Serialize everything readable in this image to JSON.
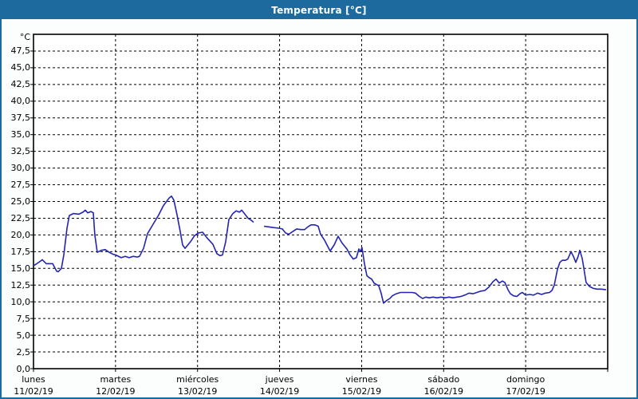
{
  "window": {
    "title": "Temperatura [°C]"
  },
  "colors": {
    "titlebar_bg": "#1d6b9e",
    "titlebar_text": "#ffffff",
    "window_border": "#1d6b9e",
    "canvas_bg": "#fcfefd",
    "plot_bg": "#ffffff",
    "plot_border": "#000000",
    "gridline": "#000000",
    "line_color": "#2323b4",
    "label_color": "#000000"
  },
  "y_axis": {
    "unit": "°C",
    "tick_labels": [
      "47,5",
      "45,0",
      "42,5",
      "40,0",
      "37,5",
      "35,0",
      "32,5",
      "30,0",
      "27,5",
      "25,0",
      "22,5",
      "20,0",
      "17,5",
      "15,0",
      "12,5",
      "10,0",
      "7,5",
      "5,0",
      "2,5",
      "0,0"
    ],
    "tick_values": [
      47.5,
      45.0,
      42.5,
      40.0,
      37.5,
      35.0,
      32.5,
      30.0,
      27.5,
      25.0,
      22.5,
      20.0,
      17.5,
      15.0,
      12.5,
      10.0,
      7.5,
      5.0,
      2.5,
      0.0
    ]
  },
  "x_axis": {
    "days": [
      {
        "name": "lunes",
        "date": "11/02/19"
      },
      {
        "name": "martes",
        "date": "12/02/19"
      },
      {
        "name": "miércoles",
        "date": "13/02/19"
      },
      {
        "name": "jueves",
        "date": "14/02/19"
      },
      {
        "name": "viernes",
        "date": "15/02/19"
      },
      {
        "name": "sábado",
        "date": "16/02/19"
      },
      {
        "name": "domingo",
        "date": "17/02/19"
      }
    ]
  },
  "chart_data": {
    "type": "line",
    "title": "Temperatura [°C]",
    "xlabel": "",
    "ylabel": "°C",
    "ylim": [
      0,
      50
    ],
    "y_step": 2.5,
    "x_range_days": 7,
    "x_start": "lunes 11/02/19 00:00",
    "x_end": "domingo 17/02/19 24:00",
    "grid": "dashed",
    "legend": "none",
    "series": [
      {
        "name": "Temperatura",
        "color": "#2323b4",
        "x_unit": "days since 11/02/19 00:00",
        "segments": [
          [
            [
              0.0,
              15.4
            ],
            [
              0.04,
              15.7
            ],
            [
              0.087,
              16.1
            ],
            [
              0.107,
              16.3
            ],
            [
              0.156,
              15.7
            ],
            [
              0.233,
              15.7
            ],
            [
              0.282,
              14.6
            ],
            [
              0.301,
              14.5
            ],
            [
              0.34,
              15.0
            ],
            [
              0.369,
              17.0
            ],
            [
              0.408,
              21.0
            ],
            [
              0.437,
              22.9
            ],
            [
              0.486,
              23.2
            ],
            [
              0.554,
              23.1
            ],
            [
              0.603,
              23.4
            ],
            [
              0.632,
              23.7
            ],
            [
              0.661,
              23.3
            ],
            [
              0.7,
              23.5
            ],
            [
              0.729,
              23.3
            ],
            [
              0.748,
              20.0
            ],
            [
              0.778,
              17.4
            ],
            [
              0.826,
              17.7
            ],
            [
              0.875,
              17.8
            ],
            [
              0.923,
              17.4
            ],
            [
              0.972,
              17.1
            ],
            [
              1.001,
              17.0
            ],
            [
              1.069,
              16.6
            ],
            [
              1.118,
              16.8
            ],
            [
              1.166,
              16.6
            ],
            [
              1.215,
              16.8
            ],
            [
              1.264,
              16.7
            ],
            [
              1.293,
              16.8
            ],
            [
              1.342,
              18.0
            ],
            [
              1.39,
              20.2
            ],
            [
              1.458,
              21.6
            ],
            [
              1.526,
              23.0
            ],
            [
              1.585,
              24.4
            ],
            [
              1.653,
              25.5
            ],
            [
              1.682,
              25.8
            ],
            [
              1.711,
              25.2
            ],
            [
              1.75,
              23.0
            ],
            [
              1.789,
              20.5
            ],
            [
              1.818,
              18.5
            ],
            [
              1.847,
              18.0
            ],
            [
              1.915,
              19.0
            ],
            [
              1.964,
              19.9
            ],
            [
              2.012,
              20.3
            ],
            [
              2.061,
              20.4
            ],
            [
              2.119,
              19.5
            ],
            [
              2.187,
              18.6
            ],
            [
              2.236,
              17.2
            ],
            [
              2.275,
              16.9
            ],
            [
              2.304,
              17.0
            ],
            [
              2.343,
              19.0
            ],
            [
              2.382,
              22.3
            ],
            [
              2.431,
              23.2
            ],
            [
              2.47,
              23.6
            ],
            [
              2.509,
              23.4
            ],
            [
              2.538,
              23.7
            ],
            [
              2.577,
              23.1
            ],
            [
              2.615,
              22.5
            ],
            [
              2.654,
              22.2
            ],
            [
              2.683,
              21.9
            ]
          ],
          [
            [
              2.81,
              21.3
            ],
            [
              2.868,
              21.2
            ],
            [
              2.926,
              21.1
            ],
            [
              2.995,
              21.0
            ],
            [
              3.033,
              20.9
            ],
            [
              3.072,
              20.3
            ],
            [
              3.111,
              20.1
            ],
            [
              3.16,
              20.5
            ],
            [
              3.208,
              20.9
            ],
            [
              3.257,
              20.8
            ],
            [
              3.306,
              20.8
            ],
            [
              3.344,
              21.2
            ],
            [
              3.383,
              21.5
            ],
            [
              3.432,
              21.5
            ],
            [
              3.471,
              21.3
            ],
            [
              3.5,
              20.1
            ],
            [
              3.549,
              19.2
            ],
            [
              3.578,
              18.5
            ],
            [
              3.617,
              17.6
            ],
            [
              3.665,
              18.5
            ],
            [
              3.714,
              19.8
            ],
            [
              3.762,
              18.8
            ],
            [
              3.821,
              17.9
            ],
            [
              3.86,
              17.0
            ],
            [
              3.899,
              16.4
            ],
            [
              3.937,
              16.6
            ],
            [
              3.967,
              17.9
            ],
            [
              3.986,
              17.5
            ],
            [
              4.005,
              18.1
            ],
            [
              4.035,
              15.7
            ],
            [
              4.064,
              13.9
            ],
            [
              4.093,
              13.6
            ],
            [
              4.122,
              13.4
            ],
            [
              4.151,
              12.8
            ],
            [
              4.18,
              12.6
            ],
            [
              4.209,
              12.4
            ],
            [
              4.238,
              11.3
            ],
            [
              4.267,
              9.8
            ],
            [
              4.306,
              10.2
            ],
            [
              4.345,
              10.5
            ],
            [
              4.374,
              10.9
            ],
            [
              4.423,
              11.2
            ],
            [
              4.472,
              11.4
            ],
            [
              4.52,
              11.4
            ],
            [
              4.569,
              11.4
            ],
            [
              4.617,
              11.4
            ],
            [
              4.656,
              11.3
            ],
            [
              4.705,
              10.8
            ],
            [
              4.744,
              10.5
            ],
            [
              4.783,
              10.7
            ],
            [
              4.822,
              10.6
            ],
            [
              4.87,
              10.7
            ],
            [
              4.919,
              10.6
            ],
            [
              4.967,
              10.7
            ],
            [
              5.016,
              10.6
            ],
            [
              5.065,
              10.7
            ],
            [
              5.113,
              10.6
            ],
            [
              5.162,
              10.7
            ],
            [
              5.211,
              10.8
            ],
            [
              5.259,
              11.0
            ],
            [
              5.308,
              11.3
            ],
            [
              5.357,
              11.2
            ],
            [
              5.405,
              11.4
            ],
            [
              5.454,
              11.6
            ],
            [
              5.502,
              11.7
            ],
            [
              5.551,
              12.2
            ],
            [
              5.6,
              13.0
            ],
            [
              5.639,
              13.4
            ],
            [
              5.678,
              12.8
            ],
            [
              5.717,
              13.1
            ],
            [
              5.746,
              12.9
            ],
            [
              5.785,
              11.8
            ],
            [
              5.814,
              11.2
            ],
            [
              5.853,
              10.9
            ],
            [
              5.892,
              10.8
            ],
            [
              5.931,
              11.2
            ],
            [
              5.96,
              11.4
            ],
            [
              5.999,
              11.0
            ],
            [
              6.048,
              11.1
            ],
            [
              6.096,
              11.0
            ],
            [
              6.145,
              11.3
            ],
            [
              6.194,
              11.1
            ],
            [
              6.242,
              11.3
            ],
            [
              6.291,
              11.4
            ],
            [
              6.32,
              11.7
            ],
            [
              6.349,
              12.5
            ],
            [
              6.388,
              14.9
            ],
            [
              6.417,
              15.9
            ],
            [
              6.446,
              16.2
            ],
            [
              6.485,
              16.2
            ],
            [
              6.514,
              16.4
            ],
            [
              6.553,
              17.5
            ],
            [
              6.582,
              16.8
            ],
            [
              6.611,
              15.9
            ],
            [
              6.64,
              16.8
            ],
            [
              6.66,
              17.7
            ],
            [
              6.689,
              16.5
            ],
            [
              6.708,
              15.1
            ],
            [
              6.737,
              12.9
            ],
            [
              6.776,
              12.3
            ],
            [
              6.825,
              12.0
            ],
            [
              6.873,
              11.9
            ],
            [
              6.922,
              11.9
            ],
            [
              6.98,
              11.8
            ]
          ]
        ]
      }
    ]
  }
}
